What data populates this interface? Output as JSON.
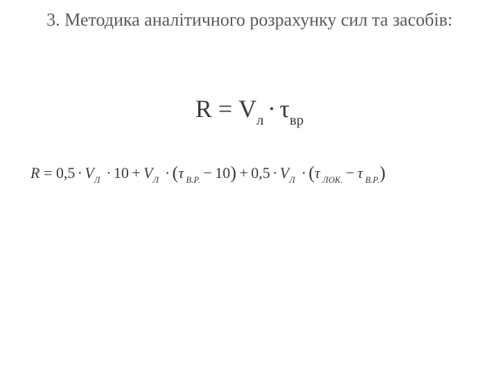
{
  "heading": "3. Методика аналітичного розрахунку сил та засобів:",
  "formula_main": {
    "R": "R",
    "eq": "=",
    "V": "V",
    "V_sub": "л",
    "mult": "·",
    "tau": "τ",
    "tau_sub": "вр"
  },
  "formula_sub": {
    "R": "R",
    "eq": "=",
    "c1": "0,5",
    "mult": "·",
    "V": "V",
    "V_sub": "Л",
    "c2": "10",
    "plus": "+",
    "lp": "(",
    "rp": ")",
    "tau": "τ",
    "tau_vr": "В.Р.",
    "minus": "−",
    "tau_lok": "ЛОК."
  },
  "colors": {
    "heading": "#595959",
    "formula": "#3a3a3a",
    "background": "#ffffff"
  }
}
